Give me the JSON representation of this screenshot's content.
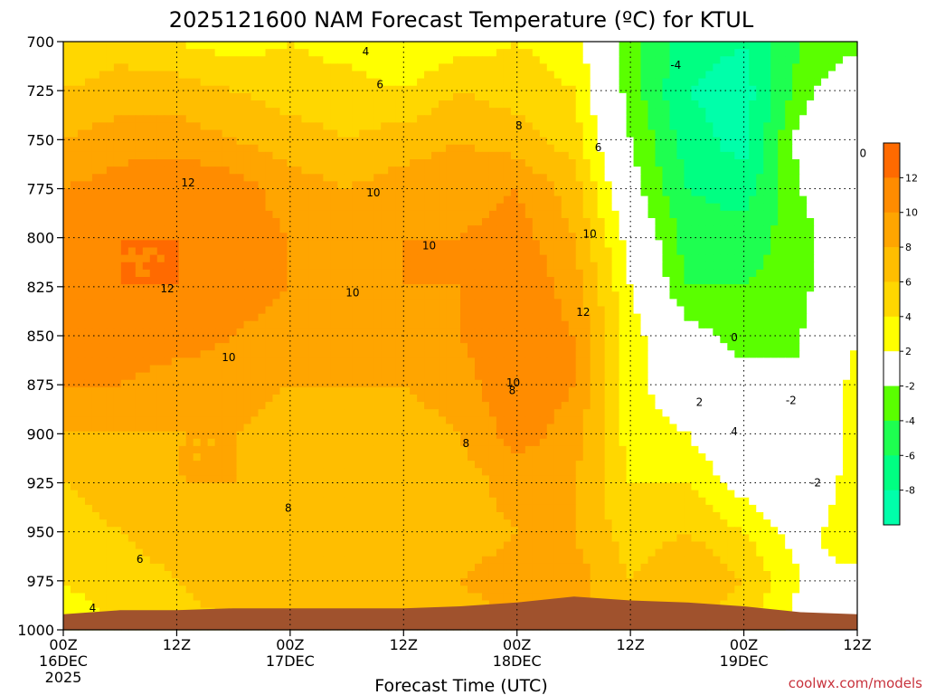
{
  "chart_data": {
    "type": "heatmap",
    "title": "2025121600 NAM Forecast Temperature (ºC) for KTUL",
    "xlabel": "Forecast Time (UTC)",
    "ylabel": "",
    "credit": "coolwx.com/models",
    "y_axis": {
      "reversed": true,
      "ylim": [
        1000,
        700
      ],
      "ticks": [
        "700",
        "725",
        "750",
        "775",
        "800",
        "825",
        "850",
        "875",
        "900",
        "925",
        "950",
        "975",
        "1000"
      ]
    },
    "x_axis": {
      "xlim": [
        "2025-12-16T00Z",
        "2025-12-19T12Z"
      ],
      "ticks": [
        {
          "time": "2025-12-16T00Z",
          "line1": "00Z",
          "line2": "16DEC",
          "line3": "2025"
        },
        {
          "time": "2025-12-16T12Z",
          "line1": "12Z",
          "line2": "",
          "line3": ""
        },
        {
          "time": "2025-12-17T00Z",
          "line1": "00Z",
          "line2": "17DEC",
          "line3": ""
        },
        {
          "time": "2025-12-17T12Z",
          "line1": "12Z",
          "line2": "",
          "line3": ""
        },
        {
          "time": "2025-12-18T00Z",
          "line1": "00Z",
          "line2": "18DEC",
          "line3": ""
        },
        {
          "time": "2025-12-18T12Z",
          "line1": "12Z",
          "line2": "",
          "line3": ""
        },
        {
          "time": "2025-12-19T00Z",
          "line1": "00Z",
          "line2": "19DEC",
          "line3": ""
        },
        {
          "time": "2025-12-19T12Z",
          "line1": "12Z",
          "line2": "",
          "line3": ""
        }
      ]
    },
    "grid": "dotted",
    "legend_position": "right",
    "colorbar": [
      {
        "range": [
          12,
          14
        ],
        "color": "#ff6a00",
        "label": "12"
      },
      {
        "range": [
          10,
          12
        ],
        "color": "#ff8c00",
        "label": "10"
      },
      {
        "range": [
          8,
          10
        ],
        "color": "#ffa500",
        "label": "8"
      },
      {
        "range": [
          6,
          8
        ],
        "color": "#ffbe00",
        "label": "6"
      },
      {
        "range": [
          4,
          6
        ],
        "color": "#ffd700",
        "label": "4"
      },
      {
        "range": [
          2,
          4
        ],
        "color": "#ffff00",
        "label": "2"
      },
      {
        "range": [
          -2,
          2
        ],
        "color": "#ffffff",
        "label": "-2"
      },
      {
        "range": [
          -4,
          -2
        ],
        "color": "#5aff00",
        "label": "-4"
      },
      {
        "range": [
          -6,
          -4
        ],
        "color": "#1eff50",
        "label": "-6"
      },
      {
        "range": [
          -8,
          -6
        ],
        "color": "#00ff82",
        "label": "-8"
      },
      {
        "range": [
          -10,
          -8
        ],
        "color": "#00ffaa",
        "label": ""
      }
    ],
    "hours": [
      0,
      6,
      12,
      18,
      24,
      30,
      36,
      42,
      48,
      54,
      60,
      66,
      72,
      78,
      84
    ],
    "levels": [
      700,
      725,
      750,
      775,
      800,
      825,
      850,
      875,
      900,
      925,
      950,
      975,
      1000
    ],
    "temperature": [
      [
        4,
        5,
        4,
        3,
        4,
        3,
        2,
        3,
        4,
        3,
        -3,
        -7,
        -8,
        -4,
        -3
      ],
      [
        6,
        7,
        7,
        6,
        5,
        5,
        4,
        6,
        5,
        4,
        -3,
        -8,
        -9,
        -3,
        1
      ],
      [
        8,
        9,
        9,
        8,
        7,
        6,
        7,
        8,
        7,
        5,
        -2,
        -7,
        -9,
        -1,
        0
      ],
      [
        10,
        11,
        12,
        11,
        9,
        8,
        9,
        9,
        10,
        7,
        -1,
        -6,
        -7,
        -2,
        1
      ],
      [
        11,
        12,
        12,
        11,
        10,
        9,
        10,
        10,
        11,
        8,
        1,
        -5,
        -5,
        -3,
        1
      ],
      [
        12,
        12,
        12,
        11,
        10,
        9,
        10,
        10,
        12,
        9,
        2,
        -4,
        -4,
        -3,
        2
      ],
      [
        11,
        11,
        11,
        10,
        9,
        9,
        9,
        10,
        12,
        10,
        3,
        -1,
        -3,
        -2,
        2
      ],
      [
        10,
        10,
        9,
        9,
        8,
        8,
        8,
        9,
        12,
        10,
        3,
        0,
        -1,
        -2,
        3
      ],
      [
        8,
        8,
        8,
        8,
        7,
        7,
        7,
        8,
        11,
        9,
        3,
        2,
        -1,
        -2,
        3
      ],
      [
        6,
        7,
        8,
        8,
        7,
        7,
        7,
        7,
        9,
        8,
        4,
        4,
        1,
        -2,
        4
      ],
      [
        5,
        6,
        7,
        7,
        7,
        7,
        7,
        7,
        8,
        8,
        5,
        6,
        4,
        1,
        4
      ],
      [
        4,
        5,
        6,
        7,
        7,
        8,
        8,
        8,
        9,
        9,
        6,
        8,
        6,
        2,
        1
      ],
      [
        3,
        4,
        5,
        6,
        6,
        7,
        7,
        7,
        8,
        8,
        6,
        7,
        4,
        1,
        0
      ]
    ],
    "terrain_surface_pressure": [
      992,
      990,
      990,
      989,
      989,
      989,
      989,
      988,
      986,
      983,
      985,
      986,
      988,
      991,
      992
    ],
    "contour_labels": [
      {
        "text": "4",
        "hour": 32.0,
        "level": 705
      },
      {
        "text": "6",
        "hour": 33.5,
        "level": 722
      },
      {
        "text": "8",
        "hour": 48.2,
        "level": 743
      },
      {
        "text": "6",
        "hour": 56.6,
        "level": 754
      },
      {
        "text": "-4",
        "hour": 64.8,
        "level": 712
      },
      {
        "text": "0",
        "hour": 84.6,
        "level": 757
      },
      {
        "text": "12",
        "hour": 13.2,
        "level": 772
      },
      {
        "text": "10",
        "hour": 32.8,
        "level": 777
      },
      {
        "text": "10",
        "hour": 38.7,
        "level": 804
      },
      {
        "text": "10",
        "hour": 55.7,
        "level": 798
      },
      {
        "text": "12",
        "hour": 11.0,
        "level": 826
      },
      {
        "text": "10",
        "hour": 30.6,
        "level": 828
      },
      {
        "text": "12",
        "hour": 55.0,
        "level": 838
      },
      {
        "text": "0",
        "hour": 71.0,
        "level": 851
      },
      {
        "text": "10",
        "hour": 17.5,
        "level": 861
      },
      {
        "text": "10",
        "hour": 47.6,
        "level": 874
      },
      {
        "text": "8",
        "hour": 47.5,
        "level": 878
      },
      {
        "text": "2",
        "hour": 67.3,
        "level": 884
      },
      {
        "text": "-2",
        "hour": 77.0,
        "level": 883
      },
      {
        "text": "4",
        "hour": 71.0,
        "level": 899
      },
      {
        "text": "8",
        "hour": 42.6,
        "level": 905
      },
      {
        "text": "-2",
        "hour": 79.6,
        "level": 925
      },
      {
        "text": "8",
        "hour": 23.8,
        "level": 938
      },
      {
        "text": "6",
        "hour": 8.1,
        "level": 964
      },
      {
        "text": "4",
        "hour": 3.1,
        "level": 989
      }
    ]
  }
}
